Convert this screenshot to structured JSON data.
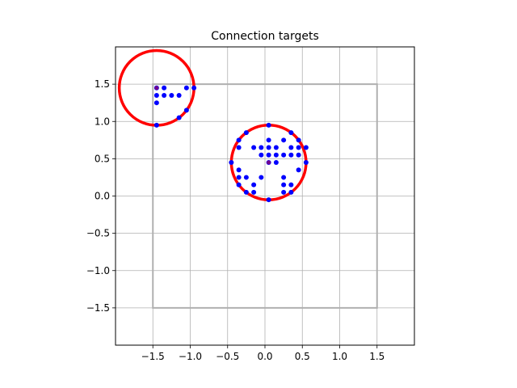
{
  "chart_data": {
    "type": "scatter",
    "title": "Connection targets",
    "xlabel": "",
    "ylabel": "",
    "xlim": [
      -2.0,
      2.0
    ],
    "ylim": [
      -2.0,
      2.0
    ],
    "grid": true,
    "xticks": [
      -1.5,
      -1.0,
      -0.5,
      0.0,
      0.5,
      1.0,
      1.5
    ],
    "yticks": [
      -1.5,
      -1.0,
      -0.5,
      0.0,
      0.5,
      1.0,
      1.5
    ],
    "xtick_labels": [
      "−1.5",
      "−1.0",
      "−0.5",
      "0.0",
      "0.5",
      "1.0",
      "1.5"
    ],
    "ytick_labels": [
      "−1.5",
      "−1.0",
      "−0.5",
      "0.0",
      "0.5",
      "1.0",
      "1.5"
    ],
    "boundary": {
      "x0": -1.5,
      "y0": -1.5,
      "x1": 1.5,
      "y1": 1.5,
      "color": "#b0b0b0"
    },
    "circles": [
      {
        "cx": -1.45,
        "cy": 1.45,
        "r": 0.5,
        "color": "#ff0000"
      },
      {
        "cx": 0.05,
        "cy": 0.45,
        "r": 0.5,
        "color": "#ff0000"
      }
    ],
    "centers": [
      {
        "x": -1.45,
        "y": 1.45,
        "color": "#ff0000"
      },
      {
        "x": 0.05,
        "y": 0.45,
        "color": "#ff0000"
      }
    ],
    "point_color": "#0000ff",
    "points": [
      [
        -1.45,
        1.45
      ],
      [
        -1.35,
        1.45
      ],
      [
        -1.05,
        1.45
      ],
      [
        -0.95,
        1.45
      ],
      [
        -1.45,
        1.35
      ],
      [
        -1.35,
        1.35
      ],
      [
        -1.25,
        1.35
      ],
      [
        -1.15,
        1.35
      ],
      [
        -1.45,
        1.25
      ],
      [
        -1.05,
        1.15
      ],
      [
        -1.15,
        1.05
      ],
      [
        -1.45,
        0.95
      ],
      [
        0.05,
        0.95
      ],
      [
        -0.25,
        0.85
      ],
      [
        0.35,
        0.85
      ],
      [
        -0.35,
        0.75
      ],
      [
        0.05,
        0.75
      ],
      [
        0.25,
        0.75
      ],
      [
        0.45,
        0.75
      ],
      [
        -0.35,
        0.65
      ],
      [
        -0.15,
        0.65
      ],
      [
        -0.05,
        0.65
      ],
      [
        0.05,
        0.65
      ],
      [
        0.15,
        0.65
      ],
      [
        0.35,
        0.65
      ],
      [
        0.45,
        0.65
      ],
      [
        0.55,
        0.65
      ],
      [
        -0.05,
        0.55
      ],
      [
        0.05,
        0.55
      ],
      [
        0.15,
        0.55
      ],
      [
        0.25,
        0.55
      ],
      [
        0.35,
        0.55
      ],
      [
        0.45,
        0.55
      ],
      [
        -0.45,
        0.45
      ],
      [
        0.05,
        0.45
      ],
      [
        0.15,
        0.45
      ],
      [
        0.55,
        0.45
      ],
      [
        -0.35,
        0.35
      ],
      [
        0.45,
        0.35
      ],
      [
        -0.35,
        0.25
      ],
      [
        -0.25,
        0.25
      ],
      [
        -0.05,
        0.25
      ],
      [
        0.25,
        0.25
      ],
      [
        -0.35,
        0.15
      ],
      [
        -0.15,
        0.15
      ],
      [
        0.25,
        0.15
      ],
      [
        0.35,
        0.15
      ],
      [
        -0.25,
        0.05
      ],
      [
        -0.15,
        0.05
      ],
      [
        0.25,
        0.05
      ],
      [
        0.35,
        0.05
      ],
      [
        0.05,
        -0.05
      ]
    ]
  }
}
